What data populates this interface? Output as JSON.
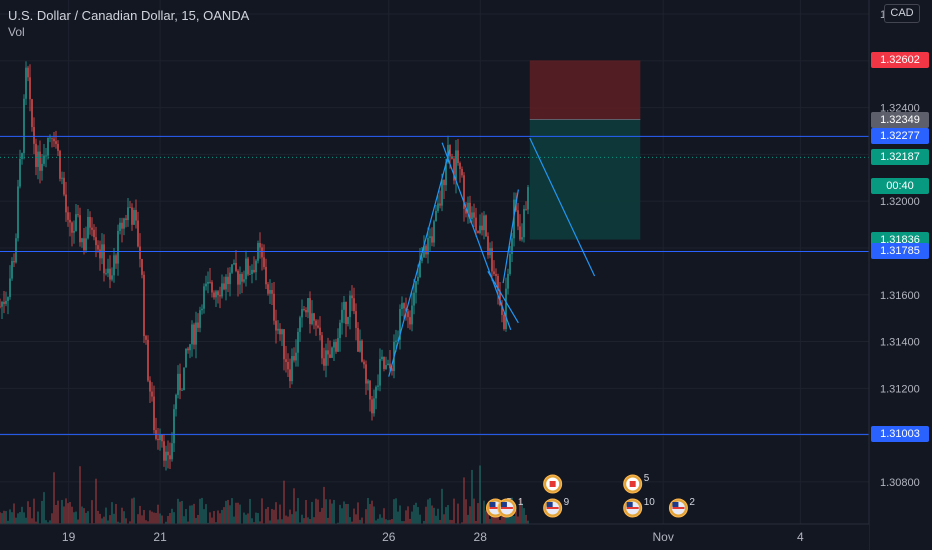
{
  "legend": {
    "symbol": "U.S. Dollar / Canadian Dollar, 15, OANDA",
    "indicator": "Vol"
  },
  "currency_button": "CAD",
  "colors": {
    "background": "#131722",
    "up": "#26a69a",
    "down": "#ef5350",
    "hline": "#2962ff",
    "trend": "#2196f3",
    "stop_zone": "#5b1f24",
    "target_zone": "#0d3b3b"
  },
  "price_tags": [
    {
      "label": "1.32602",
      "value": 1.32602,
      "color": "#f23645"
    },
    {
      "label": "1.32349",
      "value": 1.32349,
      "color": "#5d606b"
    },
    {
      "label": "1.32277",
      "value": 1.32277,
      "color": "#2962ff"
    },
    {
      "label": "1.32187",
      "value": 1.32187,
      "color": "#089981"
    },
    {
      "label": "00:40",
      "value": 1.32066,
      "color": "#089981"
    },
    {
      "label": "1.31836",
      "value": 1.31836,
      "color": "#089981"
    },
    {
      "label": "1.31785",
      "value": 1.31785,
      "color": "#2962ff"
    },
    {
      "label": "1.31003",
      "value": 1.31003,
      "color": "#2962ff"
    }
  ],
  "events": [
    {
      "type": "us",
      "count": "5",
      "at": "Oct 28 08:00"
    },
    {
      "type": "us",
      "count": "1",
      "at": "Oct 28 14:00"
    },
    {
      "type": "ca",
      "count": "",
      "at": "Oct 29 14:00"
    },
    {
      "type": "us",
      "count": "9",
      "at": "Oct 29 14:00"
    },
    {
      "type": "ca",
      "count": "5",
      "at": "Oct 31 08:00"
    },
    {
      "type": "us",
      "count": "10",
      "at": "Oct 31 08:00"
    },
    {
      "type": "us",
      "count": "2",
      "at": "Nov 1 08:00"
    }
  ],
  "chart_data": {
    "type": "candlestick",
    "symbol": "USDCAD",
    "interval": "15",
    "source": "OANDA",
    "x_range": [
      "Oct 17 12:00",
      "Nov 5 12:00"
    ],
    "y_range": [
      1.3062,
      1.3286
    ],
    "y_ticks": [
      1.308,
      1.31,
      1.312,
      1.314,
      1.316,
      1.318,
      1.32,
      1.322,
      1.324,
      1.326,
      1.328
    ],
    "y_tick_labels": [
      "1.30800",
      "1.31000",
      "1.31200",
      "1.31400",
      "1.31600",
      "1.31800",
      "1.32000",
      "1.32200",
      "1.32400",
      "1.32600",
      "1.32800"
    ],
    "x_ticks": [
      {
        "label": "19",
        "at": "Oct 19"
      },
      {
        "label": "21",
        "at": "Oct 21"
      },
      {
        "label": "26",
        "at": "Oct 26"
      },
      {
        "label": "28",
        "at": "Oct 28"
      },
      {
        "label": "Nov",
        "at": "Nov 1"
      },
      {
        "label": "4",
        "at": "Nov 4"
      }
    ],
    "price_path": [
      [
        "Oct 17 12:00",
        1.3155
      ],
      [
        "Oct 17 16:00",
        1.3162
      ],
      [
        "Oct 17 20:00",
        1.318
      ],
      [
        "Oct 17 22:00",
        1.321
      ],
      [
        "Oct 18 00:00",
        1.323
      ],
      [
        "Oct 18 02:00",
        1.3258
      ],
      [
        "Oct 18 04:00",
        1.3235
      ],
      [
        "Oct 18 08:00",
        1.3215
      ],
      [
        "Oct 18 12:00",
        1.3225
      ],
      [
        "Oct 18 16:00",
        1.3232
      ],
      [
        "Oct 18 20:00",
        1.3212
      ],
      [
        "Oct 18 22:00",
        1.32
      ],
      [
        "Oct 19 00:00",
        1.3185
      ],
      [
        "Oct 19 04:00",
        1.319
      ],
      [
        "Oct 19 08:00",
        1.3182
      ],
      [
        "Oct 19 12:00",
        1.3194
      ],
      [
        "Oct 19 16:00",
        1.318
      ],
      [
        "Oct 19 20:00",
        1.317
      ],
      [
        "Oct 19 22:00",
        1.3163
      ],
      [
        "Oct 20 00:00",
        1.3175
      ],
      [
        "Oct 20 04:00",
        1.319
      ],
      [
        "Oct 20 08:00",
        1.3198
      ],
      [
        "Oct 20 10:00",
        1.3193
      ],
      [
        "Oct 20 12:00",
        1.3185
      ],
      [
        "Oct 20 14:00",
        1.3175
      ],
      [
        "Oct 20 16:00",
        1.314
      ],
      [
        "Oct 20 20:00",
        1.311
      ],
      [
        "Oct 20 22:00",
        1.3098
      ],
      [
        "Oct 21 00:00",
        1.3105
      ],
      [
        "Oct 21 04:00",
        1.3085
      ],
      [
        "Oct 21 06:00",
        1.3095
      ],
      [
        "Oct 21 08:00",
        1.3118
      ],
      [
        "Oct 21 12:00",
        1.3125
      ],
      [
        "Oct 21 16:00",
        1.314
      ],
      [
        "Oct 21 20:00",
        1.315
      ],
      [
        "Oct 21 22:00",
        1.316
      ],
      [
        "Oct 23 00:00",
        1.3172
      ],
      [
        "Oct 23 04:00",
        1.3178
      ],
      [
        "Oct 23 08:00",
        1.3165
      ],
      [
        "Oct 23 12:00",
        1.3152
      ],
      [
        "Oct 23 16:00",
        1.314
      ],
      [
        "Oct 23 20:00",
        1.3128
      ],
      [
        "Oct 24 00:00",
        1.314
      ],
      [
        "Oct 24 04:00",
        1.3155
      ],
      [
        "Oct 24 08:00",
        1.315
      ],
      [
        "Oct 24 12:00",
        1.3138
      ],
      [
        "Oct 24 16:00",
        1.313
      ],
      [
        "Oct 24 20:00",
        1.314
      ],
      [
        "Oct 25 00:00",
        1.315
      ],
      [
        "Oct 25 04:00",
        1.3158
      ],
      [
        "Oct 25 08:00",
        1.314
      ],
      [
        "Oct 25 12:00",
        1.312
      ],
      [
        "Oct 25 16:00",
        1.3112
      ],
      [
        "Oct 25 20:00",
        1.313
      ],
      [
        "Oct 26 00:00",
        1.3126
      ],
      [
        "Oct 26 04:00",
        1.314
      ],
      [
        "Oct 26 08:00",
        1.3158
      ],
      [
        "Oct 26 12:00",
        1.3152
      ],
      [
        "Oct 26 16:00",
        1.317
      ],
      [
        "Oct 26 20:00",
        1.3182
      ],
      [
        "Oct 27 00:00",
        1.3188
      ],
      [
        "Oct 27 04:00",
        1.3205
      ],
      [
        "Oct 27 06:00",
        1.322
      ],
      [
        "Oct 27 08:00",
        1.3225
      ],
      [
        "Oct 27 10:00",
        1.3212
      ],
      [
        "Oct 27 12:00",
        1.3218
      ],
      [
        "Oct 27 16:00",
        1.32
      ],
      [
        "Oct 27 20:00",
        1.3192
      ],
      [
        "Oct 28 00:00",
        1.3185
      ],
      [
        "Oct 28 02:00",
        1.3195
      ],
      [
        "Oct 28 04:00",
        1.318
      ],
      [
        "Oct 28 08:00",
        1.317
      ],
      [
        "Oct 28 10:00",
        1.316
      ],
      [
        "Oct 28 12:00",
        1.3145
      ],
      [
        "Oct 28 14:00",
        1.3165
      ],
      [
        "Oct 28 16:00",
        1.318
      ],
      [
        "Oct 28 18:00",
        1.3198
      ],
      [
        "Oct 28 20:00",
        1.319
      ],
      [
        "Oct 28 22:00",
        1.3185
      ],
      [
        "Oct 29 00:00",
        1.32
      ],
      [
        "Oct 29 02:00",
        1.3219
      ]
    ],
    "horizontal_lines": [
      1.32277,
      1.31785,
      1.31003
    ],
    "last_price": 1.32187,
    "position": {
      "side": "short",
      "entry": 1.32349,
      "stop": 1.32602,
      "target": 1.31836,
      "from": "Oct 29 02:00",
      "to": "Oct 31 12:00"
    },
    "trend_lines": [
      [
        [
          "Oct 26 00:00",
          1.3125
        ],
        [
          "Oct 27 08:00",
          1.3222
        ]
      ],
      [
        [
          "Oct 27 04:00",
          1.3225
        ],
        [
          "Oct 28 16:00",
          1.3145
        ]
      ],
      [
        [
          "Oct 28 12:00",
          1.3165
        ],
        [
          "Oct 28 20:00",
          1.3205
        ]
      ],
      [
        [
          "Oct 28 04:00",
          1.317
        ],
        [
          "Oct 28 20:00",
          1.3148
        ]
      ],
      [
        [
          "Oct 29 02:00",
          1.3227
        ],
        [
          "Oct 30 12:00",
          1.3168
        ]
      ]
    ],
    "volume": {
      "shown": true,
      "max_bar_fraction": 0.25
    }
  }
}
